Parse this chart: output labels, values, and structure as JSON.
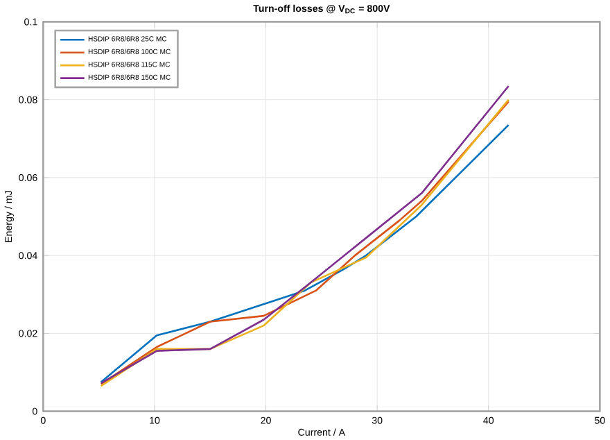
{
  "chart_data": {
    "type": "line",
    "title": "Turn-off losses @ V$_{DC}$ = 800V",
    "xlabel": "Current / A",
    "ylabel": "Energy / mJ",
    "xlim": [
      0,
      50
    ],
    "xticks": [
      0,
      10,
      20,
      30,
      40,
      50
    ],
    "ylim": [
      0,
      0.1
    ],
    "yticks": [
      0,
      0.02,
      0.04,
      0.06,
      0.08,
      0.1
    ],
    "grid": true,
    "legend": "top left",
    "marker": "none",
    "line_style": "solid",
    "series": [
      {
        "name": "HSDIP 6R8/6R8 25C MC",
        "color": "#0072bd",
        "x": [
          5.2,
          10.2,
          15,
          19.8,
          23.5,
          27,
          29,
          33.5,
          41.8
        ],
        "values": [
          0.0075,
          0.0195,
          0.023,
          0.0275,
          0.031,
          0.0365,
          0.04,
          0.05,
          0.0735
        ]
      },
      {
        "name": "HSDIP 6R8/6R8 100C MC",
        "color": "#d95319",
        "x": [
          5.2,
          10.2,
          15,
          19.8,
          24.5,
          28,
          32,
          34,
          41.8
        ],
        "values": [
          0.007,
          0.0165,
          0.023,
          0.0245,
          0.031,
          0.04,
          0.049,
          0.054,
          0.0795
        ]
      },
      {
        "name": "HSDIP 6R8/6R8 115C MC",
        "color": "#edb120",
        "x": [
          5.2,
          10.2,
          15,
          19.8,
          24,
          29,
          34,
          41.8
        ],
        "values": [
          0.0065,
          0.016,
          0.016,
          0.022,
          0.033,
          0.0395,
          0.053,
          0.08
        ]
      },
      {
        "name": "HSDIP 6R8/6R8 150C MC",
        "color": "#7e2f8e",
        "x": [
          5.2,
          10.2,
          15,
          19.8,
          24,
          29,
          34,
          41.8
        ],
        "values": [
          0.0072,
          0.0155,
          0.016,
          0.0235,
          0.033,
          0.0445,
          0.056,
          0.0835
        ]
      }
    ]
  }
}
